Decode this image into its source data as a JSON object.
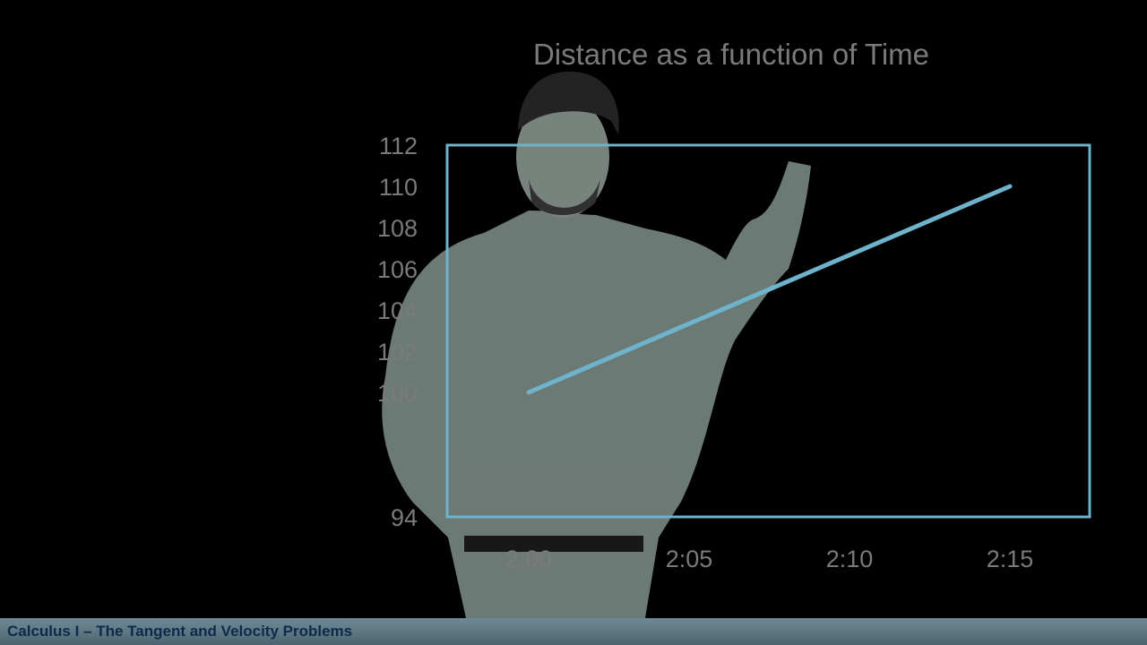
{
  "footer": {
    "title": "Calculus I – The Tangent and Velocity Problems"
  },
  "colors": {
    "plot": "#6fb2cc",
    "text": "#7a7a7a",
    "background": "#000000",
    "presenter": "#8a9a93"
  },
  "chart_data": {
    "type": "line",
    "title": "Distance as a function of Time",
    "xlabel": "",
    "ylabel": "",
    "x_ticks": [
      "2:00",
      "2:05",
      "2:10",
      "2:15"
    ],
    "y_ticks": [
      112,
      110,
      108,
      106,
      104,
      102,
      100,
      94
    ],
    "ylim": [
      94,
      112
    ],
    "grid": false,
    "series": [
      {
        "points": [
          {
            "x": "2:00",
            "y": 100
          },
          {
            "x": "2:15",
            "y": 110
          }
        ]
      }
    ]
  }
}
